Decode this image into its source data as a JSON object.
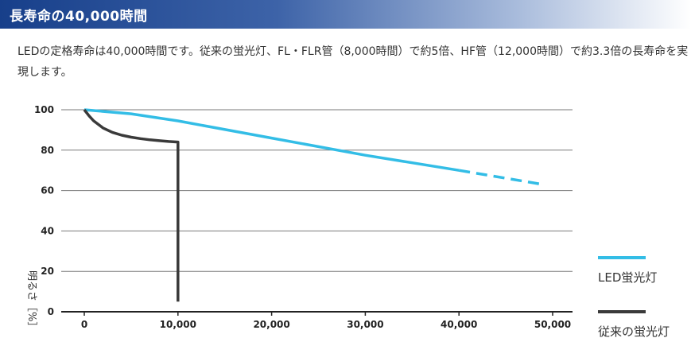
{
  "header": {
    "title": "長寿命の40,000時間"
  },
  "description": "LEDの定格寿命は40,000時間です。従来の蛍光灯、FL・FLR管（8,000時間）で約5倍、HF管（12,000時間）で約3.3倍の長寿命を実現します。",
  "colors": {
    "led": "#33bde6",
    "fluorescent": "#3a3a3a",
    "grid": "#7a7a7a",
    "axis": "#222222"
  },
  "chart_data": {
    "type": "line",
    "ylabel": "明るさ［%］",
    "xlim": [
      0,
      50000
    ],
    "ylim": [
      0,
      100
    ],
    "x_ticks": [
      0,
      10000,
      20000,
      30000,
      40000,
      50000
    ],
    "x_tick_labels": [
      "0",
      "10,000",
      "20,000",
      "30,000",
      "40,000",
      "50,000"
    ],
    "y_ticks": [
      0,
      20,
      40,
      60,
      80,
      100
    ],
    "y_tick_labels": [
      "0",
      "20",
      "40",
      "60",
      "80",
      "100"
    ],
    "grid": "horizontal",
    "legend_position": "right",
    "series": [
      {
        "name": "LED蛍光灯",
        "color": "#33bde6",
        "x": [
          0,
          5000,
          10000,
          20000,
          30000,
          40000
        ],
        "values": [
          100,
          98,
          94.5,
          86,
          77.5,
          70
        ],
        "dashed_x": [
          40000,
          49000
        ],
        "dashed_values": [
          70,
          63
        ]
      },
      {
        "name": "従来の蛍光灯",
        "color": "#3a3a3a",
        "x": [
          0,
          500,
          1000,
          2000,
          3000,
          4000,
          5000,
          6000,
          7000,
          8000,
          9000,
          10000,
          10000
        ],
        "values": [
          100,
          97,
          94.5,
          91,
          88.8,
          87.4,
          86.4,
          85.7,
          85.1,
          84.7,
          84.3,
          84,
          5
        ]
      }
    ]
  }
}
